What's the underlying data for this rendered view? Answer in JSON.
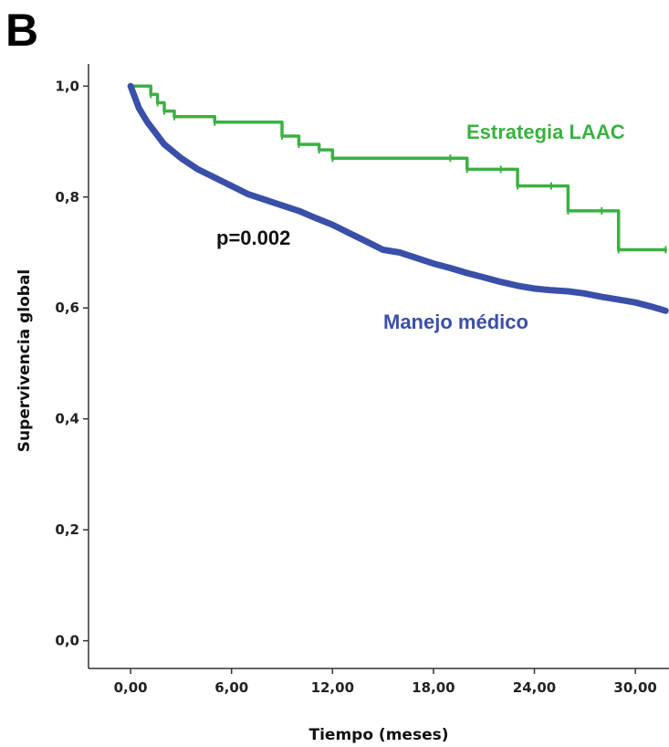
{
  "chart_data": {
    "type": "line",
    "panel_label": "B",
    "xlabel": "Tiempo (meses)",
    "ylabel": "Supervivencia global",
    "xlim": [
      -2.5,
      32
    ],
    "ylim": [
      -0.05,
      1.04
    ],
    "x_ticks": [
      0,
      6,
      12,
      18,
      24,
      30
    ],
    "x_tick_labels": [
      "0,00",
      "6,00",
      "12,00",
      "18,00",
      "24,00",
      "30,00"
    ],
    "y_ticks": [
      0,
      0.2,
      0.4,
      0.6,
      0.8,
      1.0
    ],
    "y_tick_labels": [
      "0,0",
      "0,2",
      "0,4",
      "0,6",
      "0,8",
      "1,0"
    ],
    "annotation": "p=0.002",
    "series": [
      {
        "name": "Estrategia LAAC",
        "color": "#3cb043",
        "step": true,
        "x": [
          0,
          1.2,
          1.6,
          2.0,
          2.6,
          5.0,
          9.0,
          10.0,
          11.2,
          12.0,
          19.0,
          20.0,
          22.0,
          23.0,
          25.0,
          26.0,
          28.0,
          29.0,
          31.8
        ],
        "y": [
          1.0,
          0.985,
          0.97,
          0.955,
          0.945,
          0.935,
          0.91,
          0.895,
          0.885,
          0.87,
          0.87,
          0.85,
          0.85,
          0.82,
          0.82,
          0.775,
          0.775,
          0.705,
          0.705
        ]
      },
      {
        "name": "Manejo médico",
        "color": "#3a4fa8",
        "step": false,
        "x": [
          0,
          0.5,
          1,
          1.5,
          2,
          3,
          4,
          5,
          6,
          7,
          8,
          9,
          10,
          11,
          12,
          13,
          14,
          15,
          16,
          17,
          18,
          19,
          20,
          21,
          22,
          23,
          24,
          25,
          26,
          27,
          28,
          29,
          30,
          31,
          31.8
        ],
        "y": [
          1.0,
          0.96,
          0.935,
          0.915,
          0.895,
          0.87,
          0.85,
          0.835,
          0.82,
          0.805,
          0.795,
          0.785,
          0.775,
          0.762,
          0.75,
          0.735,
          0.72,
          0.705,
          0.7,
          0.69,
          0.68,
          0.672,
          0.663,
          0.655,
          0.647,
          0.64,
          0.635,
          0.632,
          0.63,
          0.626,
          0.62,
          0.615,
          0.61,
          0.602,
          0.595
        ]
      }
    ]
  }
}
